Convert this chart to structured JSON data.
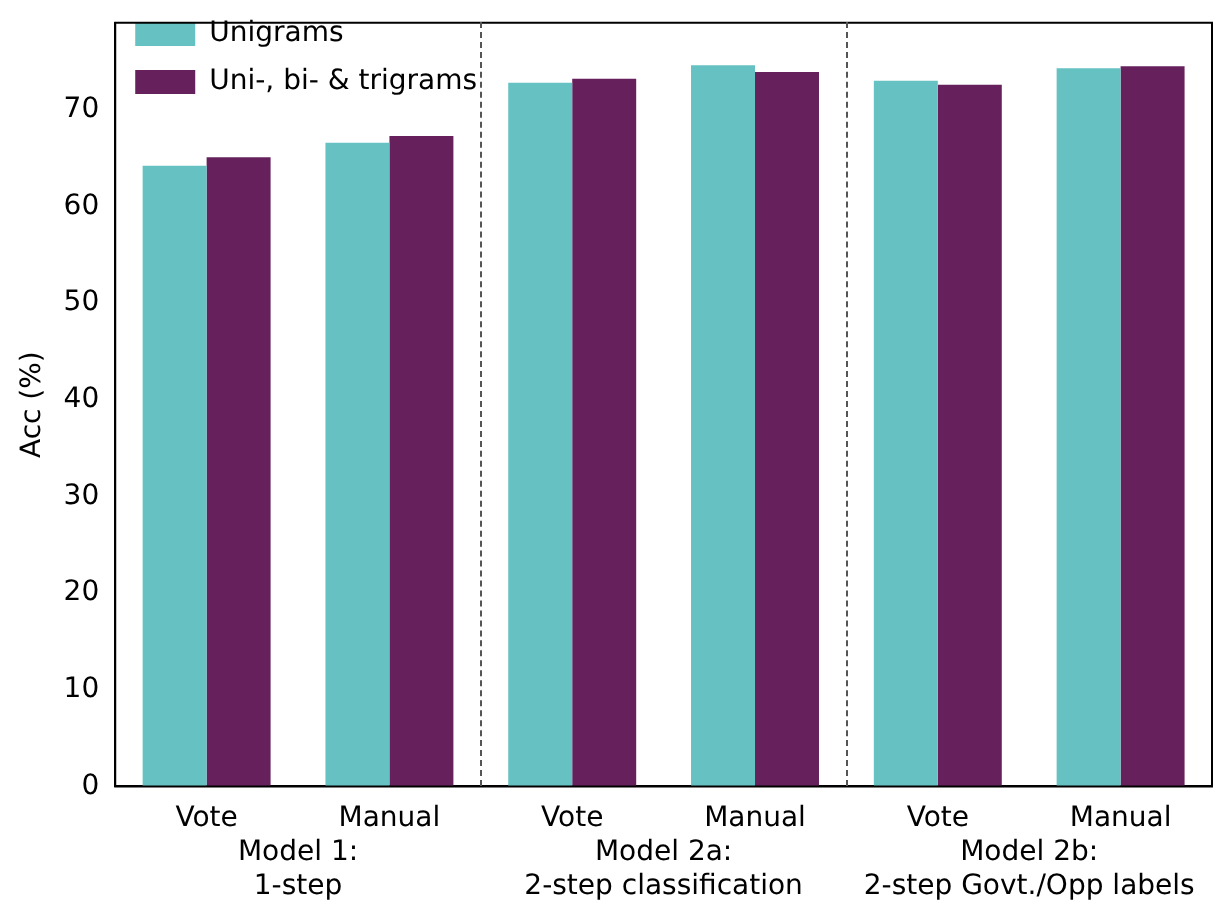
{
  "chart_data": {
    "type": "bar",
    "ylabel": "Acc (%)",
    "categories": [
      "Vote",
      "Manual",
      "Vote",
      "Manual",
      "Vote",
      "Manual"
    ],
    "series": [
      {
        "name": "Unigrams",
        "color": "#66c2c2",
        "values": [
          64.2,
          66.6,
          72.8,
          74.6,
          73.0,
          74.3
        ]
      },
      {
        "name": "Uni-, bi- & trigrams",
        "color": "#66215c",
        "values": [
          65.1,
          67.3,
          73.2,
          73.9,
          72.6,
          74.5
        ]
      }
    ],
    "annotations": [
      "Model 1:\n1-step",
      "Model 2a:\n2-step classification",
      "Model 2b:\n2-step Govt./Opp labels"
    ],
    "ylim": [
      0,
      79
    ],
    "yticks": [
      0,
      10,
      20,
      30,
      40,
      50,
      60,
      70
    ],
    "grid": false,
    "legend": "top left"
  }
}
